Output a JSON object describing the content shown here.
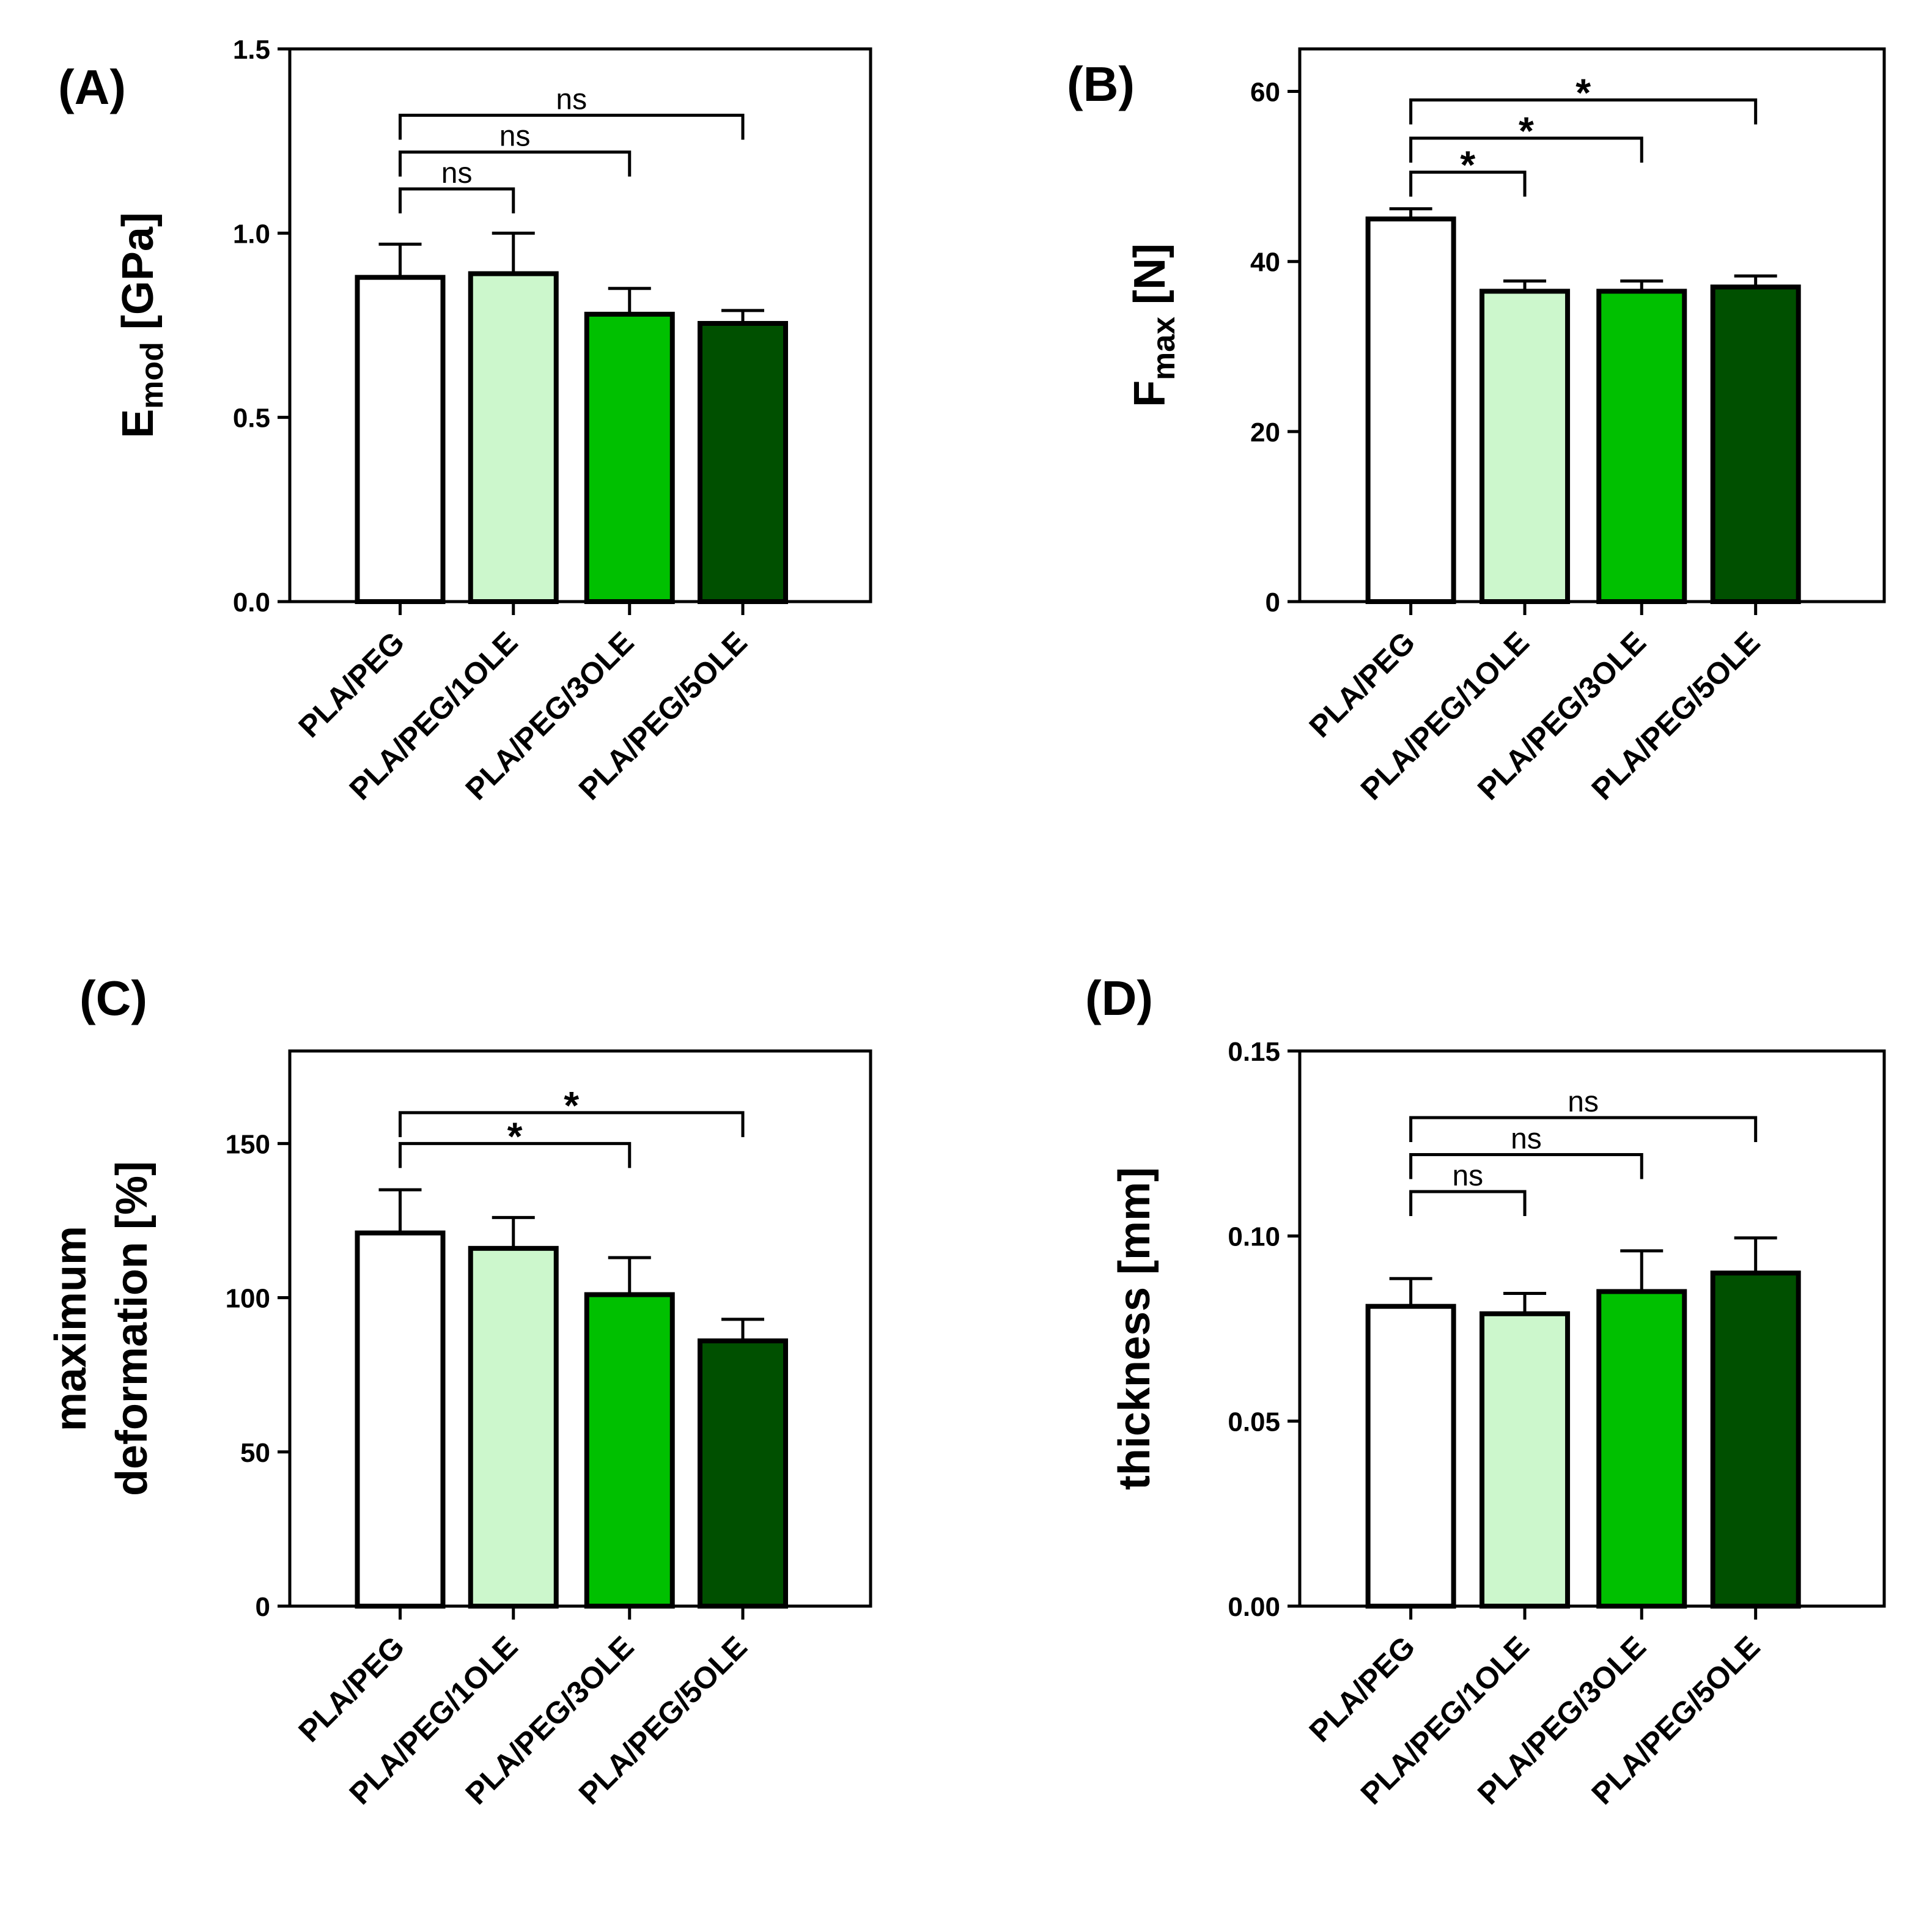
{
  "chart_data": [
    {
      "panel": "(A)",
      "type": "bar",
      "ylabel": {
        "main": "E",
        "sub": "mod",
        "rest": " [GPa]"
      },
      "ylim": [
        0,
        1.5
      ],
      "ticks": [
        0,
        0.5,
        1.0,
        1.5
      ],
      "tick_labels": [
        "0.0",
        "0.5",
        "1.0",
        "1.5"
      ],
      "categories": [
        "PLA/PEG",
        "PLA/PEG/1OLE",
        "PLA/PEG/3OLE",
        "PLA/PEG/5OLE"
      ],
      "values": [
        0.88,
        0.89,
        0.78,
        0.755
      ],
      "errors": [
        0.09,
        0.11,
        0.07,
        0.035
      ],
      "colors": [
        "#ffffff",
        "#ccf7cc",
        "#00c000",
        "#005000"
      ],
      "comparisons": [
        {
          "from": 0,
          "to": 1,
          "y": 1.12,
          "label": "ns"
        },
        {
          "from": 0,
          "to": 2,
          "y": 1.22,
          "label": "ns"
        },
        {
          "from": 0,
          "to": 3,
          "y": 1.32,
          "label": "ns"
        }
      ]
    },
    {
      "panel": "(B)",
      "type": "bar",
      "ylabel": {
        "main": "F",
        "sub": "max",
        "rest": " [N]"
      },
      "ylim": [
        0,
        65
      ],
      "ticks": [
        0,
        20,
        40,
        60
      ],
      "tick_labels": [
        "0",
        "20",
        "40",
        "60"
      ],
      "categories": [
        "PLA/PEG",
        "PLA/PEG/1OLE",
        "PLA/PEG/3OLE",
        "PLA/PEG/5OLE"
      ],
      "values": [
        45,
        36.5,
        36.5,
        37
      ],
      "errors": [
        1.2,
        1.2,
        1.2,
        1.3
      ],
      "colors": [
        "#ffffff",
        "#ccf7cc",
        "#00c000",
        "#005000"
      ],
      "comparisons": [
        {
          "from": 0,
          "to": 1,
          "y": 50.5,
          "label": "*"
        },
        {
          "from": 0,
          "to": 2,
          "y": 54.5,
          "label": "*"
        },
        {
          "from": 0,
          "to": 3,
          "y": 59,
          "label": "*"
        }
      ]
    },
    {
      "panel": "(C)",
      "type": "bar",
      "ylabel": {
        "line1": "maximum",
        "line2": "deformation [%]"
      },
      "ylim": [
        0,
        180
      ],
      "ticks": [
        0,
        50,
        100,
        150
      ],
      "tick_labels": [
        "0",
        "50",
        "100",
        "150"
      ],
      "categories": [
        "PLA/PEG",
        "PLA/PEG/1OLE",
        "PLA/PEG/3OLE",
        "PLA/PEG/5OLE"
      ],
      "values": [
        121,
        116,
        101,
        86
      ],
      "errors": [
        14,
        10,
        12,
        7
      ],
      "colors": [
        "#ffffff",
        "#ccf7cc",
        "#00c000",
        "#005000"
      ],
      "comparisons": [
        {
          "from": 0,
          "to": 2,
          "y": 150,
          "label": "*"
        },
        {
          "from": 0,
          "to": 3,
          "y": 160,
          "label": "*"
        }
      ]
    },
    {
      "panel": "(D)",
      "type": "bar",
      "ylabel": {
        "main": "thickness [mm]"
      },
      "ylim": [
        0,
        0.15
      ],
      "ticks": [
        0,
        0.05,
        0.1,
        0.15
      ],
      "tick_labels": [
        "0.00",
        "0.05",
        "0.10",
        "0.15"
      ],
      "categories": [
        "PLA/PEG",
        "PLA/PEG/1OLE",
        "PLA/PEG/3OLE",
        "PLA/PEG/5OLE"
      ],
      "values": [
        0.081,
        0.079,
        0.085,
        0.09
      ],
      "errors": [
        0.0075,
        0.0055,
        0.011,
        0.0095
      ],
      "colors": [
        "#ffffff",
        "#ccf7cc",
        "#00c000",
        "#005000"
      ],
      "comparisons": [
        {
          "from": 0,
          "to": 1,
          "y": 0.112,
          "label": "ns"
        },
        {
          "from": 0,
          "to": 2,
          "y": 0.122,
          "label": "ns"
        },
        {
          "from": 0,
          "to": 3,
          "y": 0.132,
          "label": "ns"
        }
      ]
    }
  ]
}
